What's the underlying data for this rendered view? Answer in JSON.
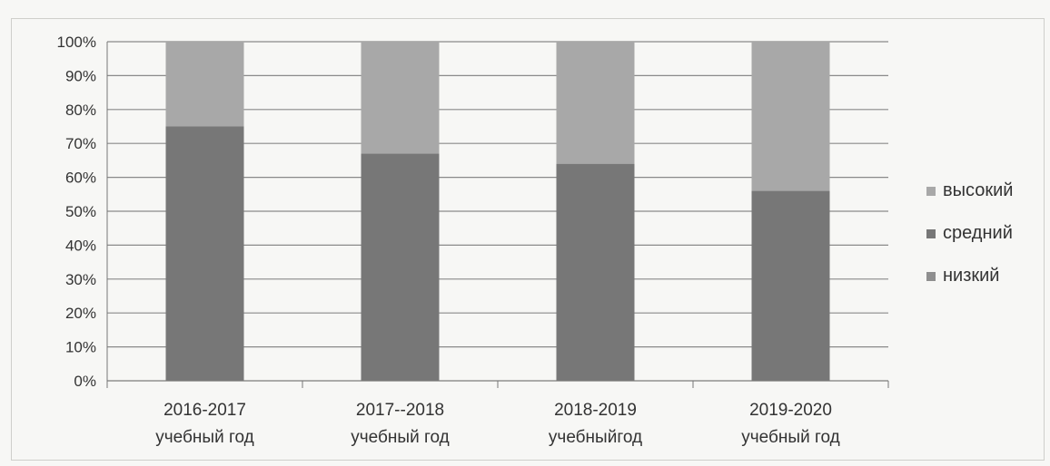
{
  "chart_data": {
    "type": "bar",
    "stacked": true,
    "categories": [
      [
        "2016-2017",
        "учебный год"
      ],
      [
        "2017--2018",
        "учебный год"
      ],
      [
        "2018-2019",
        "учебныйгод"
      ],
      [
        "2019-2020",
        "учебный год"
      ]
    ],
    "series": [
      {
        "name": "низкий",
        "values": [
          0,
          0,
          0,
          0
        ],
        "color": "#8f8f8f"
      },
      {
        "name": "средний",
        "values": [
          75,
          67,
          64,
          56
        ],
        "color": "#777777"
      },
      {
        "name": "высокий",
        "values": [
          25,
          33,
          36,
          44
        ],
        "color": "#a8a8a8"
      }
    ],
    "legend_order": [
      "высокий",
      "средний",
      "низкий"
    ],
    "legend_placement": "right",
    "ylim": [
      0,
      100
    ],
    "y_ticks": [
      "0%",
      "10%",
      "20%",
      "30%",
      "40%",
      "50%",
      "60%",
      "70%",
      "80%",
      "90%",
      "100%"
    ],
    "grid": true
  }
}
